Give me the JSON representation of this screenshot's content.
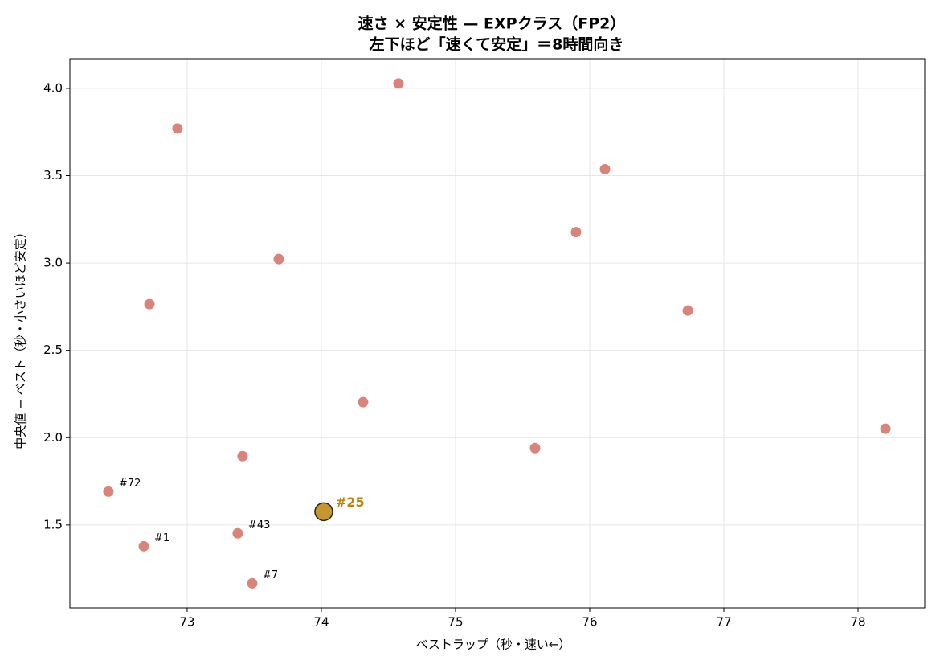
{
  "chart_data": {
    "type": "scatter",
    "title": "速さ × 安定性 — EXPクラス（FP2）",
    "subtitle": "左下ほど「速くて安定」＝8時間向き",
    "x_label": "ベストラップ（秒・速い←）",
    "y_label": "中央値 − ベスト（秒・小さいほど安定）",
    "color": "#d9837a",
    "x": [
      74.575,
      72.928,
      76.114,
      75.898,
      73.683,
      72.719,
      76.731,
      74.311,
      78.204,
      75.593,
      73.413,
      72.413,
      72.677,
      73.377,
      73.485
    ],
    "y": [
      4.028,
      3.77,
      3.537,
      3.177,
      3.023,
      2.765,
      2.728,
      2.203,
      2.051,
      1.94,
      1.894,
      1.691,
      1.378,
      1.452,
      1.166
    ],
    "labels": [
      null,
      null,
      null,
      null,
      null,
      null,
      null,
      null,
      null,
      null,
      null,
      "#72",
      "#1",
      "#43",
      "#7"
    ],
    "highlight": {
      "x": 74.018,
      "y": 1.576,
      "label": "#25",
      "color": "#c4972f",
      "label_color": "#b8860b"
    },
    "xlim": [
      72.126,
      78.497
    ],
    "ylim": [
      1.025,
      4.17
    ],
    "xticks": [
      73,
      74,
      75,
      76,
      77,
      78
    ],
    "yticks": [
      1.5,
      {
        "value": 2,
        "label": "2.0"
      },
      2.5,
      {
        "value": 3,
        "label": "3.0"
      },
      3.5,
      {
        "value": 4,
        "label": "4.0"
      }
    ],
    "grid": true
  }
}
